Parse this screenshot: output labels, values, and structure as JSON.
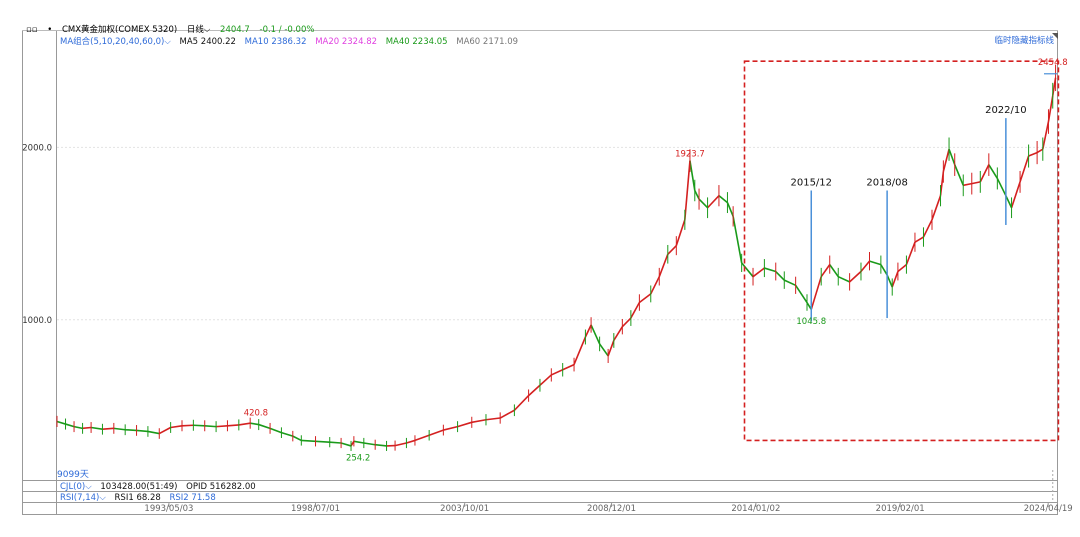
{
  "header": {
    "window_icon": "link-icon",
    "instrument": "CMX黄金加权(COMEX 5320)",
    "period": "日线",
    "price": "2404.7",
    "change": "-0.1 / -0.00%"
  },
  "ma_bar": {
    "group": "MA组合(5,10,20,40,60,0)",
    "items": [
      {
        "label": "MA5 2400.22",
        "color": "#111111"
      },
      {
        "label": "MA10 2386.32",
        "color": "#2f6bd8"
      },
      {
        "label": "MA20 2324.82",
        "color": "#e040e0"
      },
      {
        "label": "MA40 2234.05",
        "color": "#1a9a1a"
      },
      {
        "label": "MA60 2171.09",
        "color": "#777777"
      }
    ]
  },
  "hide_indicator": "临时隐藏指标线",
  "day_count": "9099天",
  "volume_bar": {
    "name": "CJL(0)",
    "value": "103428.00(51:49)",
    "opid": "OPID 516282.00"
  },
  "rsi_bar": {
    "name": "RSI(7,14)",
    "rsi1": "RSI1 68.28",
    "rsi2": "RSI2 71.58"
  },
  "chart_data": {
    "type": "line",
    "title": "",
    "xlabel": "",
    "ylabel": "",
    "ylim": [
      140,
      2600
    ],
    "y_ticks": [
      {
        "value": 1000,
        "label": "1000.0"
      },
      {
        "value": 2000,
        "label": "2000.0"
      }
    ],
    "x_ticks": [
      {
        "x": 1993.34,
        "label": "1993/05/03"
      },
      {
        "x": 1998.5,
        "label": "1998/07/01"
      },
      {
        "x": 2003.75,
        "label": "2003/10/01"
      },
      {
        "x": 2008.92,
        "label": "2008/12/01"
      },
      {
        "x": 2014.0,
        "label": "2014/01/02"
      },
      {
        "x": 2019.08,
        "label": "2019/02/01"
      },
      {
        "x": 2024.29,
        "label": "2024/04/19"
      }
    ],
    "x_range": [
      1989.4,
      2024.6
    ],
    "grid": true,
    "colors": {
      "up": "#d42020",
      "down": "#1a9a1a",
      "highlight": "#d42020",
      "marker_line": "#4a90d9"
    },
    "series": [
      {
        "x": [
          1989.4,
          1989.7,
          1990.0,
          1990.3,
          1990.6,
          1991.0,
          1991.4,
          1991.8,
          1992.2,
          1992.6,
          1993.0,
          1993.4,
          1993.8,
          1994.2,
          1994.6,
          1995.0,
          1995.4,
          1995.8,
          1996.2,
          1996.5,
          1996.9,
          1997.3,
          1997.7,
          1998.0,
          1998.5,
          1999.0,
          1999.4,
          1999.75,
          1999.85,
          2000.2,
          2000.6,
          2001.0,
          2001.3,
          2001.7,
          2002.0,
          2002.5,
          2003.0,
          2003.5,
          2004.0,
          2004.5,
          2005.0,
          2005.5,
          2006.0,
          2006.4,
          2006.8,
          2007.2,
          2007.6,
          2008.0,
          2008.2,
          2008.5,
          2008.8,
          2009.0,
          2009.3,
          2009.6,
          2009.9,
          2010.3,
          2010.6,
          2010.9,
          2011.2,
          2011.5,
          2011.68,
          2011.85,
          2012.0,
          2012.3,
          2012.7,
          2013.0,
          2013.2,
          2013.5,
          2013.9,
          2014.3,
          2014.7,
          2015.0,
          2015.4,
          2015.8,
          2015.95,
          2016.3,
          2016.6,
          2016.9,
          2017.3,
          2017.7,
          2018.0,
          2018.4,
          2018.62,
          2018.8,
          2019.0,
          2019.3,
          2019.6,
          2019.9,
          2020.2,
          2020.5,
          2020.6,
          2020.8,
          2021.0,
          2021.3,
          2021.6,
          2021.9,
          2022.2,
          2022.5,
          2022.8,
          2023.0,
          2023.3,
          2023.6,
          2023.9,
          2024.1,
          2024.3,
          2024.45,
          2024.55
        ],
        "y": [
          410,
          395,
          380,
          370,
          375,
          365,
          370,
          362,
          358,
          352,
          340,
          375,
          385,
          388,
          385,
          380,
          385,
          390,
          400,
          392,
          370,
          345,
          325,
          300,
          295,
          290,
          285,
          268,
          295,
          285,
          275,
          268,
          270,
          285,
          300,
          330,
          360,
          380,
          405,
          420,
          430,
          475,
          560,
          620,
          680,
          710,
          740,
          900,
          970,
          860,
          790,
          880,
          960,
          1010,
          1100,
          1150,
          1250,
          1380,
          1430,
          1580,
          1923,
          1750,
          1700,
          1650,
          1720,
          1680,
          1600,
          1330,
          1250,
          1300,
          1280,
          1230,
          1200,
          1100,
          1060,
          1250,
          1320,
          1250,
          1220,
          1280,
          1340,
          1320,
          1260,
          1190,
          1280,
          1320,
          1450,
          1480,
          1580,
          1720,
          1860,
          1990,
          1900,
          1780,
          1790,
          1800,
          1900,
          1820,
          1720,
          1650,
          1800,
          1950,
          1970,
          1990,
          2150,
          2300,
          2404
        ]
      }
    ],
    "annotations": [
      {
        "x": 1996.4,
        "y": 420.8,
        "label": "420.8",
        "color": "#d42020"
      },
      {
        "x": 2000.0,
        "y": 254.2,
        "label": "254.2",
        "color": "#1a9a1a"
      },
      {
        "x": 2011.68,
        "y": 1923.7,
        "label": "1923.7",
        "color": "#d42020"
      },
      {
        "x": 2015.95,
        "y": 1045.8,
        "label": "1045.8",
        "color": "#1a9a1a"
      },
      {
        "x": 2024.45,
        "y": 2454.8,
        "label": "2454.8",
        "color": "#d42020"
      }
    ],
    "markers": [
      {
        "x": 2015.95,
        "label": "2015/12",
        "y_top": 1750,
        "y_bottom": 990
      },
      {
        "x": 2018.62,
        "label": "2018/08",
        "y_top": 1750,
        "y_bottom": 1010
      },
      {
        "x": 2022.8,
        "label": "2022/10",
        "y_top": 2170,
        "y_bottom": 1550
      }
    ],
    "highlight_box": {
      "x_from": 2013.6,
      "x_to": 2024.65,
      "y_from": 300,
      "y_to": 2500,
      "style": "dashed"
    }
  }
}
